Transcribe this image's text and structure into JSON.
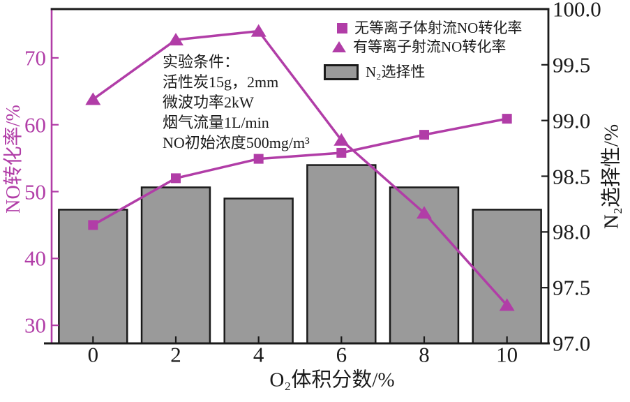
{
  "chart_data": {
    "type": "bar+line",
    "x": [
      0,
      2,
      4,
      6,
      8,
      10
    ],
    "x_axis": {
      "label": "O₂体积分数/%",
      "ticks": [
        "0",
        "2",
        "4",
        "6",
        "8",
        "10"
      ],
      "tick_values": [
        0,
        2,
        4,
        6,
        8,
        10
      ],
      "range": [
        -1,
        11
      ]
    },
    "left_axis": {
      "label": "NO转化率/%",
      "ticks": [
        "30",
        "40",
        "50",
        "60",
        "70"
      ],
      "tick_values": [
        30,
        40,
        50,
        60,
        70
      ],
      "range": [
        27.3,
        77.3
      ],
      "color": "#B13DA7"
    },
    "right_axis": {
      "label": "N₂选择性/%",
      "ticks": [
        "97.0",
        "97.5",
        "98.0",
        "98.5",
        "99.0",
        "99.5",
        "100.0"
      ],
      "tick_values": [
        97,
        97.5,
        98,
        98.5,
        99,
        99.5,
        100
      ],
      "range": [
        97,
        100
      ],
      "color": "#1A1A1A"
    },
    "bars": {
      "name": "N₂选择性",
      "axis": "right",
      "values": [
        98.2,
        98.4,
        98.3,
        98.6,
        98.4,
        98.2
      ],
      "fill": "#9A9A9A",
      "stroke": "#1A1A1A",
      "bar_width_units": 1.65
    },
    "series": [
      {
        "name": "无等离子体射流NO转化率",
        "axis": "left",
        "marker": "square",
        "color": "#B13DA7",
        "values": [
          45,
          52,
          54.9,
          55.8,
          58.5,
          60.9
        ]
      },
      {
        "name": "有等离子射流NO转化率",
        "axis": "left",
        "marker": "triangle",
        "color": "#B13DA7",
        "values": [
          63.8,
          72.7,
          74,
          57.7,
          46.8,
          33
        ]
      }
    ],
    "annotation": {
      "lines": [
        "实验条件：",
        "活性炭15g，2mm",
        "微波功率2kW",
        "烟气流量1L/min",
        "NO初始浓度500mg/m³"
      ]
    },
    "legend_position": "top-right-inside",
    "grid": false
  },
  "legend": {
    "items": [
      {
        "label": "无等离子体射流NO转化率",
        "marker": "square"
      },
      {
        "label": "有等离子射流NO转化率",
        "marker": "triangle"
      },
      {
        "label": "N₂选择性",
        "marker": "bar"
      }
    ]
  }
}
